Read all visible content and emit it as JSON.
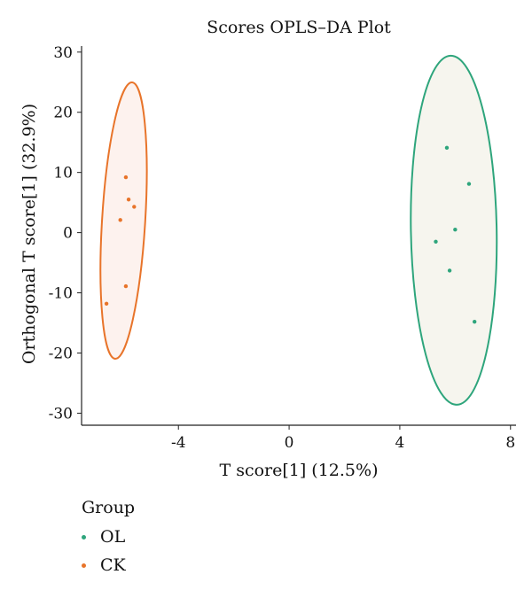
{
  "chart_data": {
    "type": "scatter",
    "title": "Scores OPLS–DA Plot",
    "xlabel": "T score[1] (12.5%)",
    "ylabel": "Orthogonal T score[1] (32.9%)",
    "xlim": [
      -7.5,
      8.2
    ],
    "ylim": [
      -32,
      31
    ],
    "xticks": [
      -4,
      0,
      4,
      8
    ],
    "yticks": [
      30,
      20,
      10,
      0,
      -10,
      -20,
      -30
    ],
    "legend_title": "Group",
    "legend_position": "bottom-left",
    "series": [
      {
        "name": "OL",
        "color": "#2ea57c",
        "fill": "#f6f5ee",
        "points": [
          {
            "x": 5.7,
            "y": 14.1
          },
          {
            "x": 6.5,
            "y": 8.1
          },
          {
            "x": 6.0,
            "y": 0.5
          },
          {
            "x": 5.3,
            "y": -1.5
          },
          {
            "x": 5.8,
            "y": -6.3
          },
          {
            "x": 6.7,
            "y": -14.8
          }
        ],
        "ellipse": {
          "cx": 5.95,
          "cy": 0.4,
          "rx": 1.55,
          "ry": 29.0,
          "angle_deg": -1.0
        }
      },
      {
        "name": "CK",
        "color": "#e8742a",
        "fill": "#fdf2ee",
        "points": [
          {
            "x": -5.9,
            "y": 9.2
          },
          {
            "x": -5.8,
            "y": 5.5
          },
          {
            "x": -5.6,
            "y": 4.3
          },
          {
            "x": -6.1,
            "y": 2.1
          },
          {
            "x": -5.9,
            "y": -8.9
          },
          {
            "x": -6.6,
            "y": -11.8
          }
        ],
        "ellipse": {
          "cx": -5.98,
          "cy": 2.0,
          "rx": 0.78,
          "ry": 23.0,
          "angle_deg": 3.5
        }
      }
    ]
  }
}
